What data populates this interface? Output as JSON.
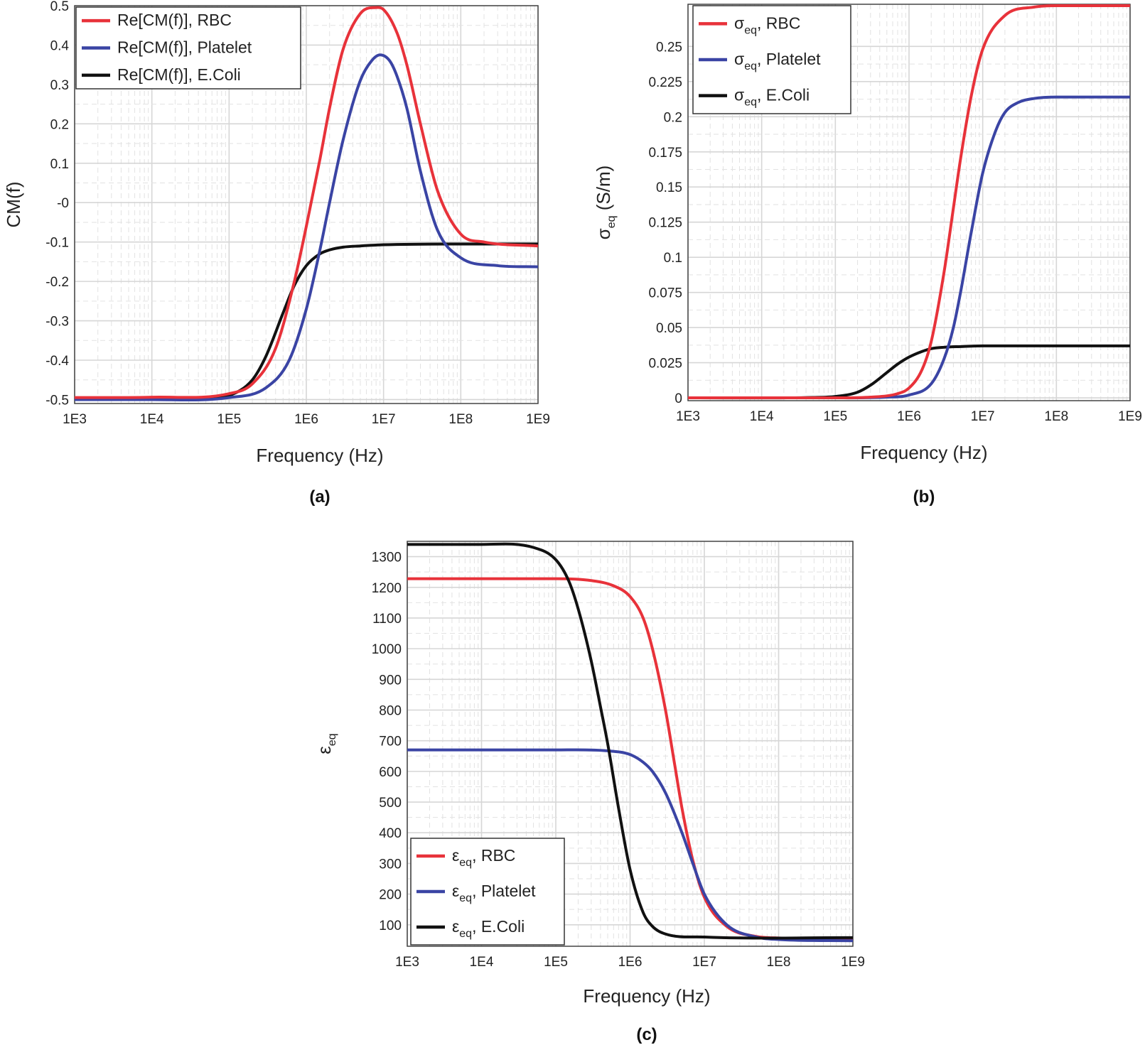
{
  "colors": {
    "rbc": "#e8323a",
    "platelet": "#3a44a4",
    "ecoli": "#111111"
  },
  "chart_data": [
    {
      "id": "a",
      "type": "line",
      "panel_label": "(a)",
      "xlabel": "Frequency (Hz)",
      "ylabel": "CM(f)",
      "xscale": "log",
      "xlim": [
        1000,
        1000000000
      ],
      "ylim": [
        -0.51,
        0.5
      ],
      "x_ticks": [
        "1E3",
        "1E4",
        "1E5",
        "1E6",
        "1E7",
        "1E8",
        "1E9"
      ],
      "y_ticks": [
        {
          "value": 0.5,
          "label": "0.5"
        },
        {
          "value": 0.4,
          "label": "0.4"
        },
        {
          "value": 0.3,
          "label": "0.3"
        },
        {
          "value": 0.2,
          "label": "0.2"
        },
        {
          "value": 0.1,
          "label": "0.1"
        },
        {
          "value": 0,
          "label": "-0"
        },
        {
          "value": -0.1,
          "label": "-0.1"
        },
        {
          "value": -0.2,
          "label": "-0.2"
        },
        {
          "value": -0.3,
          "label": "-0.3"
        },
        {
          "value": -0.4,
          "label": "-0.4"
        },
        {
          "value": -0.5,
          "label": "-0.5"
        }
      ],
      "legend_position": "top-left",
      "series": [
        {
          "key": "rbc",
          "legend": {
            "prefix": "Re[CM(f)], RBC",
            "sub": "",
            "suffix": ""
          },
          "x": [
            1000,
            10000,
            100000,
            200000,
            400000,
            700000,
            1000000,
            1500000,
            2000000,
            3000000,
            5000000,
            7500000,
            10000000,
            15000000,
            20000000,
            30000000,
            50000000,
            100000000,
            200000000,
            1000000000
          ],
          "y": [
            -0.495,
            -0.494,
            -0.485,
            -0.46,
            -0.37,
            -0.2,
            -0.06,
            0.11,
            0.24,
            0.39,
            0.48,
            0.495,
            0.49,
            0.43,
            0.35,
            0.2,
            0.03,
            -0.08,
            -0.1,
            -0.11
          ]
        },
        {
          "key": "platelet",
          "legend": {
            "prefix": "Re[CM(f)], Platelet",
            "sub": "",
            "suffix": ""
          },
          "x": [
            1000,
            10000,
            100000,
            300000,
            600000,
            1000000,
            1500000,
            2000000,
            3000000,
            5000000,
            7000000,
            9000000,
            12000000,
            15000000,
            20000000,
            30000000,
            50000000,
            100000000,
            300000000,
            1000000000
          ],
          "y": [
            -0.5,
            -0.5,
            -0.495,
            -0.47,
            -0.4,
            -0.27,
            -0.12,
            0.0,
            0.16,
            0.31,
            0.36,
            0.375,
            0.36,
            0.32,
            0.24,
            0.08,
            -0.07,
            -0.14,
            -0.16,
            -0.163
          ]
        },
        {
          "key": "ecoli",
          "legend": {
            "prefix": "Re[CM(f)], E.Coli",
            "sub": "",
            "suffix": ""
          },
          "x": [
            1000,
            10000,
            50000,
            100000,
            200000,
            300000,
            500000,
            700000,
            1000000,
            1500000,
            2000000,
            3000000,
            5000000,
            10000000,
            100000000,
            1000000000
          ],
          "y": [
            -0.5,
            -0.5,
            -0.497,
            -0.49,
            -0.45,
            -0.39,
            -0.28,
            -0.21,
            -0.16,
            -0.13,
            -0.12,
            -0.113,
            -0.11,
            -0.107,
            -0.105,
            -0.105
          ]
        }
      ]
    },
    {
      "id": "b",
      "type": "line",
      "panel_label": "(b)",
      "xlabel": "Frequency (Hz)",
      "ylabel": {
        "prefix": "σ",
        "sub": "eq",
        "suffix": " (S/m)"
      },
      "xscale": "log",
      "xlim": [
        1000,
        1000000000
      ],
      "ylim": [
        -0.002,
        0.28
      ],
      "x_ticks": [
        "1E3",
        "1E4",
        "1E5",
        "1E6",
        "1E7",
        "1E8",
        "1E9"
      ],
      "y_ticks": [
        {
          "value": 0.25,
          "label": "0.25"
        },
        {
          "value": 0.225,
          "label": "0.225"
        },
        {
          "value": 0.2,
          "label": "0.2"
        },
        {
          "value": 0.175,
          "label": "0.175"
        },
        {
          "value": 0.15,
          "label": "0.15"
        },
        {
          "value": 0.125,
          "label": "0.125"
        },
        {
          "value": 0.1,
          "label": "0.1"
        },
        {
          "value": 0.075,
          "label": "0.075"
        },
        {
          "value": 0.05,
          "label": "0.05"
        },
        {
          "value": 0.025,
          "label": "0.025"
        },
        {
          "value": 0,
          "label": "0"
        }
      ],
      "legend_position": "top-left",
      "series": [
        {
          "key": "rbc",
          "legend": {
            "prefix": "σ",
            "sub": "eq",
            "suffix": ", RBC"
          },
          "x": [
            1000,
            100000,
            300000,
            700000,
            1000000,
            1500000,
            2000000,
            3000000,
            4000000,
            5000000,
            7000000,
            10000000,
            20000000,
            50000000,
            100000000,
            1000000000
          ],
          "y": [
            0,
            0,
            0.0005,
            0.003,
            0.007,
            0.02,
            0.04,
            0.09,
            0.135,
            0.17,
            0.215,
            0.248,
            0.272,
            0.278,
            0.279,
            0.279
          ]
        },
        {
          "key": "platelet",
          "legend": {
            "prefix": "σ",
            "sub": "eq",
            "suffix": ", Platelet"
          },
          "x": [
            1000,
            100000,
            500000,
            1000000,
            2000000,
            3000000,
            4000000,
            5000000,
            7000000,
            10000000,
            15000000,
            20000000,
            30000000,
            50000000,
            100000000,
            1000000000
          ],
          "y": [
            0,
            0,
            0.0005,
            0.002,
            0.01,
            0.028,
            0.05,
            0.075,
            0.118,
            0.16,
            0.19,
            0.203,
            0.21,
            0.213,
            0.214,
            0.214
          ]
        },
        {
          "key": "ecoli",
          "legend": {
            "prefix": "σ",
            "sub": "eq",
            "suffix": ", E.Coli"
          },
          "x": [
            1000,
            50000,
            100000,
            200000,
            300000,
            500000,
            700000,
            1000000,
            1500000,
            2000000,
            3000000,
            5000000,
            10000000,
            100000000,
            1000000000
          ],
          "y": [
            0,
            0.0003,
            0.001,
            0.004,
            0.009,
            0.018,
            0.024,
            0.029,
            0.033,
            0.035,
            0.036,
            0.0365,
            0.037,
            0.037,
            0.037
          ]
        }
      ]
    },
    {
      "id": "c",
      "type": "line",
      "panel_label": "(c)",
      "xlabel": "Frequency (Hz)",
      "ylabel": {
        "prefix": "ε",
        "sub": "eq",
        "suffix": ""
      },
      "xscale": "log",
      "xlim": [
        1000,
        1000000000
      ],
      "ylim": [
        30,
        1350
      ],
      "x_ticks": [
        "1E3",
        "1E4",
        "1E5",
        "1E6",
        "1E7",
        "1E8",
        "1E9"
      ],
      "y_ticks": [
        {
          "value": 1300,
          "label": "1300"
        },
        {
          "value": 1200,
          "label": "1200"
        },
        {
          "value": 1100,
          "label": "1100"
        },
        {
          "value": 1000,
          "label": "1000"
        },
        {
          "value": 900,
          "label": "900"
        },
        {
          "value": 800,
          "label": "800"
        },
        {
          "value": 700,
          "label": "700"
        },
        {
          "value": 600,
          "label": "600"
        },
        {
          "value": 500,
          "label": "500"
        },
        {
          "value": 400,
          "label": "400"
        },
        {
          "value": 300,
          "label": "300"
        },
        {
          "value": 200,
          "label": "200"
        },
        {
          "value": 100,
          "label": "100"
        }
      ],
      "legend_position": "bottom-left",
      "series": [
        {
          "key": "rbc",
          "legend": {
            "prefix": "ε",
            "sub": "eq",
            "suffix": ", RBC"
          },
          "x": [
            1000,
            100000,
            300000,
            600000,
            1000000,
            1500000,
            2000000,
            3000000,
            4000000,
            5000000,
            7000000,
            10000000,
            20000000,
            50000000,
            100000000,
            1000000000
          ],
          "y": [
            1228,
            1228,
            1222,
            1205,
            1170,
            1100,
            1000,
            800,
            620,
            480,
            310,
            190,
            95,
            62,
            57,
            55
          ]
        },
        {
          "key": "platelet",
          "legend": {
            "prefix": "ε",
            "sub": "eq",
            "suffix": ", Platelet"
          },
          "x": [
            1000,
            100000,
            500000,
            1000000,
            1500000,
            2000000,
            3000000,
            5000000,
            7000000,
            10000000,
            20000000,
            50000000,
            100000000,
            1000000000
          ],
          "y": [
            670,
            670,
            667,
            655,
            630,
            600,
            530,
            400,
            300,
            200,
            100,
            60,
            52,
            48
          ]
        },
        {
          "key": "ecoli",
          "legend": {
            "prefix": "ε",
            "sub": "eq",
            "suffix": ", E.Coli"
          },
          "x": [
            1000,
            10000,
            50000,
            100000,
            150000,
            200000,
            300000,
            400000,
            500000,
            700000,
            1000000,
            1500000,
            2000000,
            3000000,
            10000000,
            1000000000
          ],
          "y": [
            1340,
            1340,
            1330,
            1290,
            1220,
            1130,
            960,
            810,
            690,
            480,
            280,
            140,
            95,
            70,
            60,
            58
          ]
        }
      ]
    }
  ]
}
